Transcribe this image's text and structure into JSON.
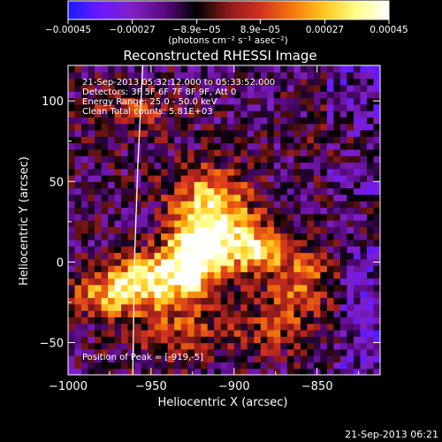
{
  "chart_data": {
    "type": "heatmap",
    "title": "Reconstructed RHESSI Image",
    "xlabel": "Heliocentric X (arcsec)",
    "ylabel": "Heliocentric Y (arcsec)",
    "xlim": [
      -1000,
      -812
    ],
    "ylim": [
      -70,
      122
    ],
    "x_ticks": [
      -1000,
      -950,
      -900,
      -850
    ],
    "x_tick_labels": [
      "−1000",
      "−950",
      "−900",
      "−850"
    ],
    "y_ticks": [
      -50,
      0,
      50,
      100
    ],
    "y_tick_labels": [
      "−50",
      "0",
      "50",
      "100"
    ],
    "colorbar": {
      "range": [
        -0.00045,
        0.00045
      ],
      "ticks": [
        -0.00045,
        -0.00027,
        -8.9e-05,
        8.9e-05,
        0.00027,
        0.00045
      ],
      "tick_labels": [
        "−0.00045",
        "−0.00027",
        "−8.9e−05",
        "8.9e−05",
        "0.00027",
        "0.00045"
      ],
      "units_label": "(photons cm⁻² s⁻¹ asec⁻²)",
      "colormap": [
        "#1a1aff",
        "#6a1aff",
        "#7f1fc6",
        "#5a0a80",
        "#000000",
        "#8c1a1a",
        "#d2321e",
        "#f5780a",
        "#ffc81e",
        "#ffff8c",
        "#ffffff"
      ]
    },
    "annotations": [
      "21-Sep-2013 05:32:12.000 to 05:33:52.000",
      "Detectors: 3F 5F 6F 7F 8F 9F, Att 0",
      "Energy Range: 25.0 - 50.0 keV",
      "Clean     Total counts: 5.81E+03"
    ],
    "peak_label": "Position of Peak = [-919,-5]",
    "peak": {
      "x": -919,
      "y": -5
    },
    "limb_curve": [
      [
        -955,
        122
      ],
      [
        -958,
        60
      ],
      [
        -960,
        0
      ],
      [
        -961,
        -70
      ]
    ]
  },
  "footer_timestamp": "21-Sep-2013 06:21"
}
